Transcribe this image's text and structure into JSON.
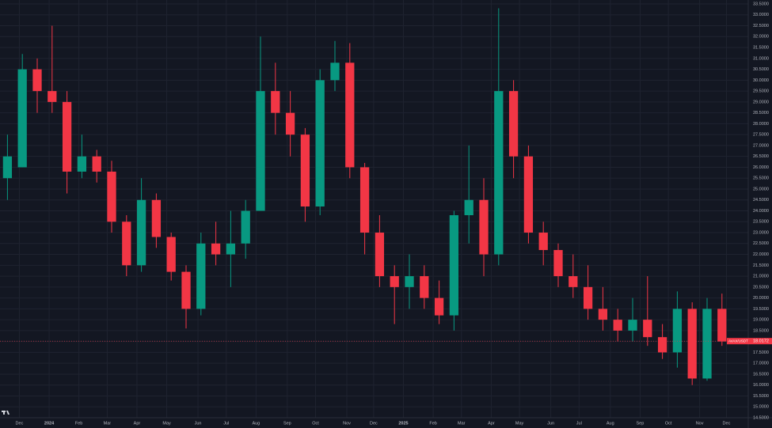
{
  "chart_data": {
    "type": "candlestick",
    "open": [
      25.5,
      26,
      30.5,
      29.5,
      29,
      25.8,
      26.5,
      25.8,
      23.5,
      21.5,
      24.5,
      22.8,
      21.2,
      19.5,
      22.5,
      22,
      22.5,
      24,
      29.5,
      28.5,
      27.5,
      24.2,
      30,
      30.8,
      26,
      23,
      21,
      20.5,
      21,
      20,
      19.2,
      23.8,
      24.5,
      22,
      29.5,
      26.5,
      23,
      22.2,
      21,
      20.5,
      19.5,
      19,
      18.5,
      19,
      18.2,
      17.5,
      19.5,
      16.3,
      19.5
    ],
    "high": [
      27.5,
      31.2,
      31,
      32.5,
      29.5,
      27.5,
      26.8,
      26.3,
      23.8,
      25.5,
      24.8,
      23,
      21.5,
      23,
      23.5,
      24,
      24.5,
      32,
      30.8,
      29.5,
      27.8,
      30.5,
      31.8,
      31.7,
      26.2,
      23.8,
      21.5,
      22,
      21.5,
      20.8,
      24,
      27,
      25.5,
      33.3,
      30,
      27,
      23.5,
      22.5,
      22,
      21.5,
      20.5,
      19.5,
      20,
      21,
      18.8,
      20.3,
      19.8,
      20,
      20.2
    ],
    "low": [
      24.5,
      26,
      28.5,
      28.5,
      24.8,
      25.5,
      25.3,
      23,
      21,
      21.2,
      22.3,
      20.8,
      18.6,
      19.2,
      21.5,
      20.5,
      21.8,
      24,
      27.5,
      26.5,
      23.5,
      23.8,
      29.5,
      25.5,
      22,
      20.5,
      18.8,
      19.5,
      19.5,
      18.8,
      18.5,
      22.5,
      21,
      21.5,
      25.5,
      22.5,
      21.5,
      20.5,
      20,
      19,
      18.5,
      18,
      18,
      17.8,
      17.2,
      16.8,
      16,
      16.2,
      17.8
    ],
    "close": [
      26.5,
      30.5,
      29.5,
      29,
      25.8,
      26.5,
      25.8,
      23.5,
      21.5,
      24.5,
      22.8,
      21.2,
      19.5,
      22.5,
      22,
      22.5,
      24,
      29.5,
      28.5,
      27.5,
      24.2,
      30,
      30.8,
      26,
      23,
      21,
      20.5,
      21,
      20,
      19.2,
      23.8,
      24.5,
      22,
      29.5,
      26.5,
      23,
      22.2,
      21,
      20.5,
      19.5,
      19,
      18.5,
      19,
      18.2,
      17.5,
      19.5,
      16.3,
      19.5,
      18
    ],
    "up_color": "#089981",
    "down_color": "#f23645",
    "xlim": [
      -0.5,
      49.5
    ],
    "xticks": [
      {
        "value": 0.8,
        "label": "Dec"
      },
      {
        "value": 2.8,
        "label": "2024"
      },
      {
        "value": 4.8,
        "label": "Feb"
      },
      {
        "value": 6.7,
        "label": "Mar"
      },
      {
        "value": 8.7,
        "label": "Apr"
      },
      {
        "value": 10.7,
        "label": "May"
      },
      {
        "value": 12.8,
        "label": "Jun"
      },
      {
        "value": 14.7,
        "label": "Jul"
      },
      {
        "value": 16.7,
        "label": "Aug"
      },
      {
        "value": 18.8,
        "label": "Sep"
      },
      {
        "value": 20.7,
        "label": "Oct"
      },
      {
        "value": 22.8,
        "label": "Nov"
      },
      {
        "value": 24.6,
        "label": "Dec"
      },
      {
        "value": 26.6,
        "label": "2025"
      },
      {
        "value": 28.6,
        "label": "Feb"
      },
      {
        "value": 30.5,
        "label": "Mar"
      },
      {
        "value": 32.5,
        "label": "Apr"
      },
      {
        "value": 34.4,
        "label": "May"
      },
      {
        "value": 36.5,
        "label": "Jun"
      },
      {
        "value": 38.4,
        "label": "Jul"
      },
      {
        "value": 40.5,
        "label": "Aug"
      },
      {
        "value": 42.5,
        "label": "Sep"
      },
      {
        "value": 44.4,
        "label": "Oct"
      },
      {
        "value": 46.5,
        "label": "Nov"
      },
      {
        "value": 48.3,
        "label": "Dec"
      }
    ],
    "ylim": [
      14.5,
      33.5
    ],
    "yticks": [
      {
        "value": 14.5,
        "label": "14.5000"
      },
      {
        "value": 15,
        "label": "15.0000"
      },
      {
        "value": 15.5,
        "label": "15.5000"
      },
      {
        "value": 16,
        "label": "16.0000"
      },
      {
        "value": 16.5,
        "label": "16.5000"
      },
      {
        "value": 17,
        "label": "17.0000"
      },
      {
        "value": 17.5,
        "label": "17.5000"
      },
      {
        "value": 18,
        "label": "18.0000"
      },
      {
        "value": 18.5,
        "label": "18.5000"
      },
      {
        "value": 19,
        "label": "19.0000"
      },
      {
        "value": 19.5,
        "label": "19.5000"
      },
      {
        "value": 20,
        "label": "20.0000"
      },
      {
        "value": 20.5,
        "label": "20.5000"
      },
      {
        "value": 21,
        "label": "21.0000"
      },
      {
        "value": 21.5,
        "label": "21.5000"
      },
      {
        "value": 22,
        "label": "22.0000"
      },
      {
        "value": 22.5,
        "label": "22.5000"
      },
      {
        "value": 23,
        "label": "23.0000"
      },
      {
        "value": 23.5,
        "label": "23.5000"
      },
      {
        "value": 24,
        "label": "24.0000"
      },
      {
        "value": 24.5,
        "label": "24.5000"
      },
      {
        "value": 25,
        "label": "25.0000"
      },
      {
        "value": 25.5,
        "label": "25.5000"
      },
      {
        "value": 26,
        "label": "26.0000"
      },
      {
        "value": 26.5,
        "label": "26.5000"
      },
      {
        "value": 27,
        "label": "27.0000"
      },
      {
        "value": 27.5,
        "label": "27.5000"
      },
      {
        "value": 28,
        "label": "28.0000"
      },
      {
        "value": 28.5,
        "label": "28.5000"
      },
      {
        "value": 29,
        "label": "29.0000"
      },
      {
        "value": 29.5,
        "label": "29.5000"
      },
      {
        "value": 30,
        "label": "30.0000"
      },
      {
        "value": 30.5,
        "label": "30.5000"
      },
      {
        "value": 31,
        "label": "31.0000"
      },
      {
        "value": 31.5,
        "label": "31.5000"
      },
      {
        "value": 32,
        "label": "32.0000"
      },
      {
        "value": 32.5,
        "label": "32.5000"
      },
      {
        "value": 33,
        "label": "33.0000"
      },
      {
        "value": 33.5,
        "label": "33.5000"
      }
    ],
    "grid": true,
    "last_price": {
      "symbol": "AVAX/USDT",
      "value": 18.0172
    }
  }
}
